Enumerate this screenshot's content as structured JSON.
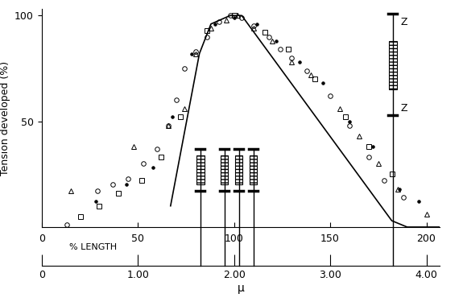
{
  "chart_data": {
    "type": "scatter",
    "y_label": "Tension developed (%)",
    "x_label": "% LENGTH",
    "xlim": [
      0,
      207
    ],
    "xticks": [
      0,
      50,
      100,
      150,
      200
    ],
    "ylim": [
      0,
      103
    ],
    "yticks": [
      50,
      100
    ],
    "grid": false,
    "color": "#000000",
    "secondary_x": {
      "label": "μ",
      "xlim": [
        0,
        4.14
      ],
      "xticks": [
        0,
        {
          "value": 1,
          "label": "1.00"
        },
        {
          "value": 2,
          "label": "2.00"
        },
        {
          "value": 3,
          "label": "3.00"
        },
        {
          "value": 4,
          "label": "4.00"
        }
      ]
    },
    "sarcomere_lengths": [
      1.65,
      1.9,
      2.05,
      2.2,
      3.65
    ],
    "sarcomere_label": "Z",
    "series": [
      {
        "type": "line",
        "line_style": "solid",
        "color": "#000000",
        "x": [
          67,
          82,
          88,
          98,
          104,
          182,
          190,
          207
        ],
        "values": [
          10,
          82,
          96,
          100,
          100,
          3,
          0,
          0
        ]
      },
      {
        "type": "scatter",
        "marker": "circle_open",
        "color": "#000000",
        "x": [
          13,
          29,
          37,
          45,
          53,
          60,
          66,
          70,
          74,
          80,
          86,
          92,
          98,
          104,
          110,
          118,
          124,
          130,
          138,
          150,
          160,
          170,
          178,
          188
        ],
        "values": [
          1,
          17,
          20,
          23,
          30,
          37,
          48,
          60,
          75,
          83,
          90,
          97,
          100,
          99,
          95,
          90,
          84,
          80,
          74,
          62,
          48,
          33,
          22,
          14
        ]
      },
      {
        "type": "scatter",
        "marker": "triangle_open",
        "color": "#000000",
        "x": [
          15,
          48,
          66,
          74,
          80,
          88,
          96,
          102,
          110,
          120,
          130,
          140,
          155,
          165,
          175,
          185,
          200
        ],
        "values": [
          17,
          38,
          48,
          56,
          82,
          94,
          98,
          100,
          94,
          88,
          78,
          72,
          56,
          43,
          30,
          18,
          6
        ]
      },
      {
        "type": "scatter",
        "marker": "square_open",
        "color": "#000000",
        "x": [
          20,
          30,
          40,
          52,
          62,
          72,
          86,
          100,
          116,
          128,
          142,
          158,
          170,
          182
        ],
        "values": [
          5,
          10,
          16,
          22,
          33,
          52,
          93,
          100,
          92,
          84,
          70,
          52,
          38,
          25
        ]
      },
      {
        "type": "scatter",
        "marker": "dot",
        "color": "#000000",
        "x": [
          28,
          44,
          58,
          68,
          78,
          90,
          100,
          112,
          122,
          134,
          146,
          160,
          172,
          186,
          196
        ],
        "values": [
          12,
          20,
          28,
          52,
          82,
          96,
          99,
          96,
          88,
          78,
          68,
          50,
          38,
          18,
          12
        ]
      }
    ]
  }
}
